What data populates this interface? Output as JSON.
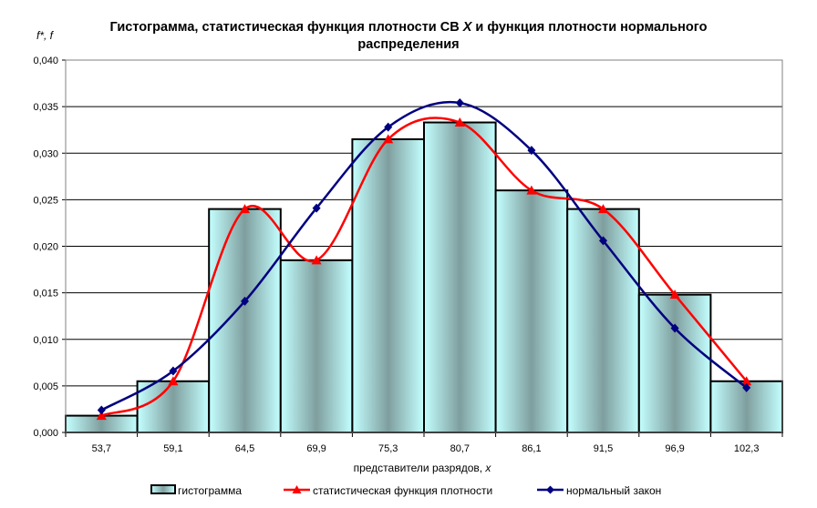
{
  "chart_data": {
    "type": "bar",
    "title_line1_pre": "Гистограмма, статистическая функция плотности СВ ",
    "title_line1_var": "X",
    "title_line1_post": " и функция плотности нормального",
    "title_line2": "распределения",
    "ylabel": "f*, f",
    "xlabel_pre": "представители разрядов, ",
    "xlabel_var": "x",
    "ylim": [
      0,
      0.04
    ],
    "yticks": [
      "0,000",
      "0,005",
      "0,010",
      "0,015",
      "0,020",
      "0,025",
      "0,030",
      "0,035",
      "0,040"
    ],
    "grid": true,
    "legend_position": "bottom",
    "categories": [
      "53,7",
      "59,1",
      "64,5",
      "69,9",
      "75,3",
      "80,7",
      "86,1",
      "91,5",
      "96,9",
      "102,3"
    ],
    "series": [
      {
        "name": "гистограмма",
        "kind": "bar",
        "values": [
          0.0018,
          0.0055,
          0.024,
          0.0185,
          0.0315,
          0.0333,
          0.026,
          0.024,
          0.0148,
          0.0055
        ],
        "color": "#99b3b3"
      },
      {
        "name": "статистическая функция плотности",
        "kind": "line",
        "marker": "triangle",
        "values": [
          0.0018,
          0.0055,
          0.024,
          0.0185,
          0.0315,
          0.0333,
          0.026,
          0.024,
          0.0148,
          0.0055
        ],
        "color": "#ff0000"
      },
      {
        "name": "нормальный закон",
        "kind": "line",
        "marker": "diamond",
        "values": [
          0.0024,
          0.0066,
          0.0141,
          0.0241,
          0.0328,
          0.0354,
          0.0303,
          0.0206,
          0.0112,
          0.0048
        ],
        "color": "#000080"
      }
    ]
  }
}
